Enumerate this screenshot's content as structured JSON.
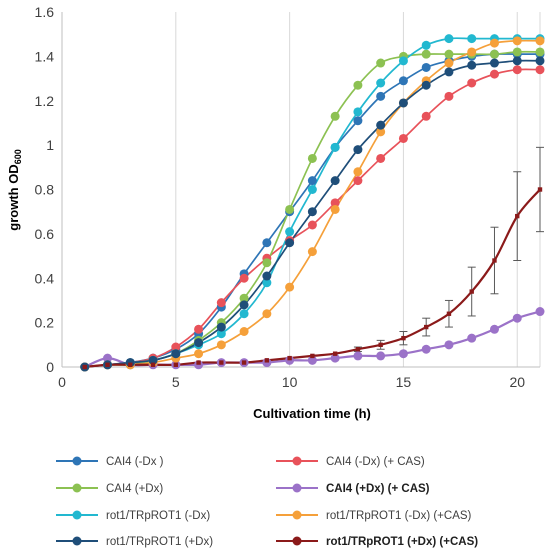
{
  "chart_data": {
    "type": "line",
    "xlabel": "Cultivation time (h)",
    "ylabel_main": "growth OD",
    "ylabel_sub": "600",
    "xlim": [
      0,
      21
    ],
    "ylim": [
      0,
      1.6
    ],
    "xticks": [
      0,
      5,
      10,
      15,
      20
    ],
    "xtick_labels": [
      "0",
      "5",
      "10",
      "15",
      "20"
    ],
    "yticks": [
      0,
      0.2,
      0.4,
      0.6,
      0.8,
      1.0,
      1.2,
      1.4,
      1.6
    ],
    "ytick_labels": [
      "0",
      "0.2",
      "0.4",
      "0.6",
      "0.8",
      "1",
      "1.2",
      "1.4",
      "1.6"
    ],
    "grid": "vertical",
    "legend_position": "bottom",
    "x": [
      1,
      2,
      3,
      4,
      5,
      6,
      7,
      8,
      9,
      10,
      11,
      12,
      13,
      14,
      15,
      16,
      17,
      18,
      19,
      20,
      21
    ],
    "series": [
      {
        "name": "CAI4 (-Dx )",
        "color": "#2E75B6",
        "bold": false,
        "values": [
          0.0,
          0.01,
          0.02,
          0.04,
          0.08,
          0.15,
          0.27,
          0.42,
          0.56,
          0.7,
          0.84,
          0.99,
          1.11,
          1.22,
          1.29,
          1.35,
          1.38,
          1.4,
          1.41,
          1.41,
          1.41
        ]
      },
      {
        "name": "CAI4 (-Dx) (+ CAS)",
        "color": "#E8525A",
        "bold": false,
        "values": [
          0.0,
          0.01,
          0.02,
          0.04,
          0.09,
          0.17,
          0.29,
          0.4,
          0.49,
          0.57,
          0.64,
          0.74,
          0.84,
          0.94,
          1.03,
          1.13,
          1.22,
          1.28,
          1.32,
          1.34,
          1.34
        ]
      },
      {
        "name": "CAI4 (+Dx)",
        "color": "#8CC152",
        "bold": false,
        "values": [
          0.0,
          0.01,
          0.01,
          0.03,
          0.06,
          0.12,
          0.2,
          0.31,
          0.47,
          0.71,
          0.94,
          1.13,
          1.27,
          1.37,
          1.4,
          1.41,
          1.41,
          1.41,
          1.41,
          1.42,
          1.42
        ]
      },
      {
        "name": "CAI4 (+Dx) (+ CAS)",
        "color": "#9B72C8",
        "bold": true,
        "values": [
          0.0,
          0.04,
          0.01,
          0.01,
          0.01,
          0.01,
          0.02,
          0.02,
          0.02,
          0.03,
          0.03,
          0.04,
          0.05,
          0.05,
          0.06,
          0.08,
          0.1,
          0.13,
          0.17,
          0.22,
          0.25
        ]
      },
      {
        "name": "rot1/TRpROT1 (-Dx)",
        "color": "#22B8D0",
        "bold": false,
        "values": [
          0.0,
          0.01,
          0.02,
          0.03,
          0.06,
          0.1,
          0.15,
          0.24,
          0.38,
          0.61,
          0.8,
          0.99,
          1.15,
          1.28,
          1.38,
          1.45,
          1.48,
          1.48,
          1.48,
          1.48,
          1.48
        ]
      },
      {
        "name": "rot1/TRpROT1 (-Dx) (+CAS)",
        "color": "#F5A03A",
        "bold": false,
        "values": [
          0.0,
          0.01,
          0.01,
          0.02,
          0.04,
          0.06,
          0.1,
          0.16,
          0.24,
          0.36,
          0.52,
          0.71,
          0.88,
          1.06,
          1.19,
          1.29,
          1.37,
          1.42,
          1.46,
          1.47,
          1.47
        ]
      },
      {
        "name": "rot1/TRpROT1 (+Dx)",
        "color": "#1F4E79",
        "bold": false,
        "values": [
          0.0,
          0.01,
          0.02,
          0.03,
          0.06,
          0.11,
          0.18,
          0.28,
          0.41,
          0.56,
          0.7,
          0.84,
          0.98,
          1.09,
          1.19,
          1.27,
          1.33,
          1.36,
          1.37,
          1.38,
          1.38
        ]
      },
      {
        "name": "rot1/TRpROT1 (+Dx) (+CAS)",
        "color": "#8B1A1A",
        "bold": true,
        "values": [
          0.0,
          0.01,
          0.01,
          0.01,
          0.01,
          0.02,
          0.02,
          0.02,
          0.03,
          0.04,
          0.05,
          0.06,
          0.08,
          0.1,
          0.13,
          0.18,
          0.24,
          0.34,
          0.48,
          0.68,
          0.8
        ],
        "error": [
          0,
          0,
          0,
          0,
          0,
          0,
          0,
          0,
          0,
          0,
          0,
          0,
          0.01,
          0.02,
          0.03,
          0.04,
          0.06,
          0.11,
          0.15,
          0.2,
          0.19
        ]
      }
    ]
  }
}
